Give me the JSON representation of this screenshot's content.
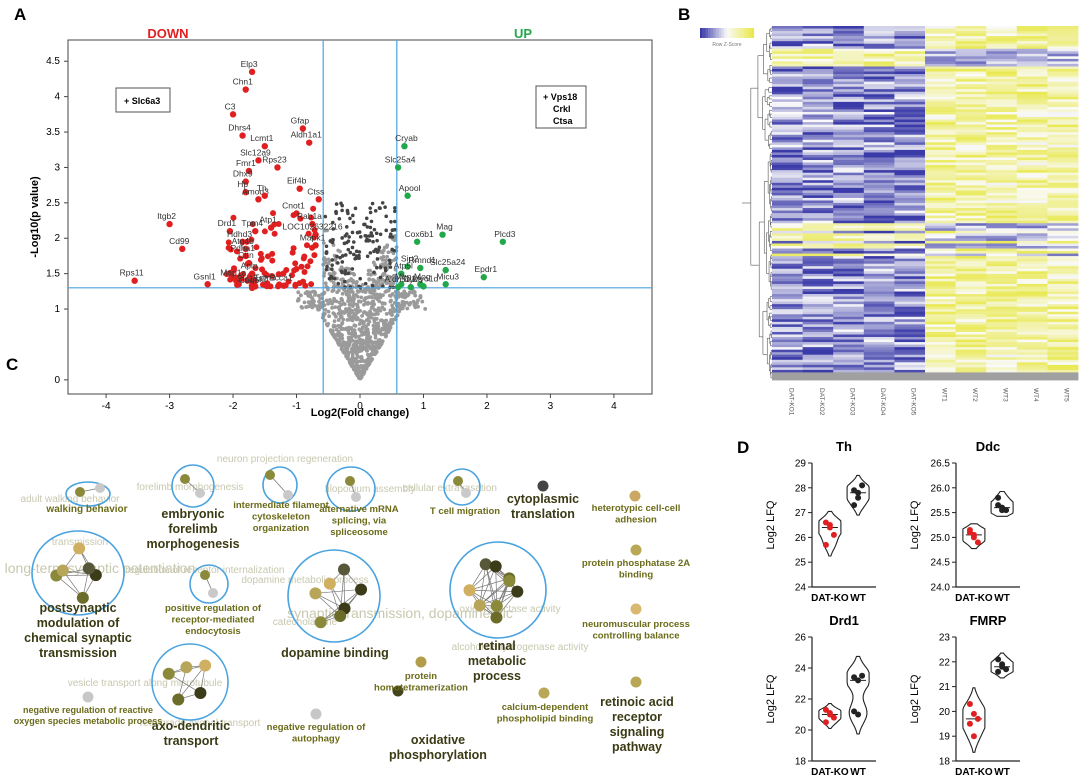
{
  "panel_labels": {
    "A": "A",
    "B": "B",
    "C": "C",
    "D": "D"
  },
  "colors": {
    "down": "#e02020",
    "up": "#22a84a",
    "ns": "#9a9a9a",
    "dark": "#444444",
    "threshold": "#4aa3df",
    "olive": "#6b6b1a",
    "lightText": "#c8c8b0",
    "heatHigh": "#e8e84a",
    "heatLow": "#3a3aa8"
  },
  "chart_data": [
    {
      "type": "scatter",
      "panel": "A",
      "title": "",
      "xlabel": "Log2(Fold change)",
      "ylabel": "-Log10(p value)",
      "xlim": [
        -4.6,
        4.6
      ],
      "ylim": [
        -0.2,
        4.8
      ],
      "xticks": [
        "-4",
        "-3",
        "-2",
        "-1",
        "0",
        "1",
        "2",
        "3",
        "4"
      ],
      "yticks": [
        "0",
        "1",
        "1.5",
        "2",
        "2.5",
        "3",
        "3.5",
        "4",
        "4.5"
      ],
      "region_labels": {
        "down": "DOWN",
        "up": "UP"
      },
      "thresholds": {
        "fc_left": -0.58,
        "fc_right": 0.58,
        "p": 1.3
      },
      "legend_down": {
        "marker": "+",
        "items": [
          "Slc6a3"
        ]
      },
      "legend_up": {
        "marker": "+",
        "items": [
          "Vps18",
          "Crkl",
          "Ctsa"
        ]
      },
      "down_labeled": [
        {
          "label": "Elp3",
          "x": -1.7,
          "y": 4.35
        },
        {
          "label": "Chn1",
          "x": -1.8,
          "y": 4.1
        },
        {
          "label": "C3",
          "x": -2.0,
          "y": 3.75
        },
        {
          "label": "Dhrs4",
          "x": -1.85,
          "y": 3.45
        },
        {
          "label": "Gfap",
          "x": -0.9,
          "y": 3.55
        },
        {
          "label": "Aldh1a1",
          "x": -0.8,
          "y": 3.35
        },
        {
          "label": "Lcmt1",
          "x": -1.5,
          "y": 3.3
        },
        {
          "label": "Slc12a9",
          "x": -1.6,
          "y": 3.1
        },
        {
          "label": "Fmr1",
          "x": -1.75,
          "y": 2.95
        },
        {
          "label": "Rps23",
          "x": -1.3,
          "y": 3.0
        },
        {
          "label": "Dhx9",
          "x": -1.8,
          "y": 2.8
        },
        {
          "label": "Hp",
          "x": -1.8,
          "y": 2.65
        },
        {
          "label": "Eif4b",
          "x": -0.95,
          "y": 2.7
        },
        {
          "label": "Amod3",
          "x": -1.6,
          "y": 2.55
        },
        {
          "label": "Th",
          "x": -1.5,
          "y": 2.6
        },
        {
          "label": "Ctss",
          "x": -0.65,
          "y": 2.55
        },
        {
          "label": "Cnot1",
          "x": -1.0,
          "y": 2.35
        },
        {
          "label": "Rab1a",
          "x": -0.75,
          "y": 2.2
        },
        {
          "label": "Itgb2",
          "x": -3.0,
          "y": 2.2
        },
        {
          "label": "Drd1",
          "x": -2.05,
          "y": 2.1
        },
        {
          "label": "Tpm4",
          "x": -1.65,
          "y": 2.1
        },
        {
          "label": "Atp1",
          "x": -1.4,
          "y": 2.15
        },
        {
          "label": "LOC102632216",
          "x": -0.7,
          "y": 2.05
        },
        {
          "label": "Hdhd3",
          "x": -1.85,
          "y": 1.95
        },
        {
          "label": "Mapk1",
          "x": -0.7,
          "y": 1.9
        },
        {
          "label": "Atg4b",
          "x": -1.8,
          "y": 1.85
        },
        {
          "label": "Cd99",
          "x": -2.8,
          "y": 1.85
        },
        {
          "label": "Pdha1",
          "x": -1.8,
          "y": 1.75
        },
        {
          "label": "Cttn",
          "x": -1.75,
          "y": 1.65
        },
        {
          "label": "Aplp",
          "x": -1.7,
          "y": 1.5
        },
        {
          "label": "Map1a",
          "x": -1.95,
          "y": 1.4
        },
        {
          "label": "Gsnl1",
          "x": -2.4,
          "y": 1.35
        },
        {
          "label": "Rps11",
          "x": -3.55,
          "y": 1.4
        },
        {
          "label": "Coq5",
          "x": -1.7,
          "y": 1.3
        },
        {
          "label": "Slc15a2",
          "x": -1.65,
          "y": 1.32
        },
        {
          "label": "Tpm3",
          "x": -1.45,
          "y": 1.33
        },
        {
          "label": "Scca1",
          "x": -1.2,
          "y": 1.33
        }
      ],
      "up_labeled": [
        {
          "label": "Cryab",
          "x": 0.7,
          "y": 3.3
        },
        {
          "label": "Slc25a4",
          "x": 0.6,
          "y": 3.0
        },
        {
          "label": "Apool",
          "x": 0.75,
          "y": 2.6
        },
        {
          "label": "Mag",
          "x": 1.3,
          "y": 2.05
        },
        {
          "label": "Plcd3",
          "x": 2.25,
          "y": 1.95
        },
        {
          "label": "Cox6b1",
          "x": 0.9,
          "y": 1.95
        },
        {
          "label": "Sirt2",
          "x": 0.75,
          "y": 1.6
        },
        {
          "label": "Rmnd1",
          "x": 0.95,
          "y": 1.58
        },
        {
          "label": "Slc25a24",
          "x": 1.35,
          "y": 1.55
        },
        {
          "label": "Atp5l",
          "x": 0.65,
          "y": 1.5
        },
        {
          "label": "Epdr1",
          "x": 1.95,
          "y": 1.45
        },
        {
          "label": "Mbp",
          "x": 0.65,
          "y": 1.35
        },
        {
          "label": "Mog",
          "x": 0.95,
          "y": 1.35
        },
        {
          "label": "Micu3",
          "x": 1.35,
          "y": 1.35
        },
        {
          "label": "Myo1d",
          "x": 1.0,
          "y": 1.32
        },
        {
          "label": "Aldh5a1",
          "x": 0.6,
          "y": 1.31
        },
        {
          "label": "Cycs",
          "x": 0.8,
          "y": 1.31
        }
      ]
    },
    {
      "type": "heatmap",
      "panel": "B",
      "title": "",
      "columns": [
        "DAT-KO1",
        "DAT-KO2",
        "DAT-KO3",
        "DAT-KO4",
        "DAT-KO5",
        "WT1",
        "WT2",
        "WT3",
        "WT4",
        "WT5"
      ],
      "colorbar_label": "Row Z-Score",
      "colorbar_range": [
        -2,
        2
      ],
      "n_rows": 140,
      "pattern": "DAT-KO columns predominantly low (blue); WT columns predominantly high (yellow)"
    },
    {
      "type": "table",
      "panel": "C",
      "title": "GO enrichment network",
      "terms": [
        {
          "label": "walking behavior",
          "major": false
        },
        {
          "label": "embryonic forelimb morphogenesis",
          "major": true
        },
        {
          "label": "intermediate filament cytoskeleton organization",
          "major": false
        },
        {
          "label": "alternative mRNA splicing, via spliceosome",
          "major": false
        },
        {
          "label": "T cell migration",
          "major": false
        },
        {
          "label": "cytoplasmic translation",
          "major": true
        },
        {
          "label": "heterotypic cell-cell adhesion",
          "major": false
        },
        {
          "label": "protein phosphatase 2A binding",
          "major": false
        },
        {
          "label": "postsynaptic modulation of chemical synaptic transmission",
          "major": true
        },
        {
          "label": "positive regulation of receptor-mediated endocytosis",
          "major": false
        },
        {
          "label": "dopamine binding",
          "major": true
        },
        {
          "label": "retinal metabolic process",
          "major": true
        },
        {
          "label": "neuromuscular process controlling balance",
          "major": false
        },
        {
          "label": "axo-dendritic transport",
          "major": true
        },
        {
          "label": "negative regulation of reactive oxygen species metabolic process",
          "major": false
        },
        {
          "label": "negative regulation of autophagy",
          "major": false
        },
        {
          "label": "protein homotetramerization",
          "major": false
        },
        {
          "label": "oxidative phosphorylation",
          "major": true
        },
        {
          "label": "calcium-dependent phospholipid binding",
          "major": false
        },
        {
          "label": "retinoic acid receptor signaling pathway",
          "major": true
        }
      ],
      "faded_terms": [
        "adult walking behavior",
        "forelimb morphogenesis",
        "neuron projection regeneration",
        "filopodium assembly",
        "cellular extravasation",
        "transmission",
        "long-term synaptic potentiation",
        "regulation of receptor internalization",
        "dopamine metabolic process",
        "catecholamine",
        "synaptic transmission, dopaminergic",
        "oxidoreductase activity",
        "alcohol dehydrogenase activity",
        "vesicle transport along microtubule",
        "retrograde axonal transport"
      ]
    },
    {
      "type": "scatter",
      "panel": "D",
      "subtype": "violin",
      "groups": [
        "DAT-KO",
        "WT"
      ],
      "ylabel": "Log2 LFQ",
      "plots": [
        {
          "title": "Th",
          "ylim": [
            24,
            29
          ],
          "yticks": [
            "24",
            "25",
            "26",
            "27",
            "28",
            "29"
          ],
          "dat_ko": [
            26.6,
            26.4,
            26.1,
            25.7,
            26.5
          ],
          "wt": [
            27.9,
            27.6,
            28.1,
            27.3,
            27.8
          ]
        },
        {
          "title": "Ddc",
          "ylim": [
            24.0,
            26.5
          ],
          "yticks": [
            "24.0",
            "24.5",
            "25.0",
            "25.5",
            "26.0",
            "26.5"
          ],
          "dat_ko": [
            25.15,
            25.05,
            24.9,
            25.1,
            25.0
          ],
          "wt": [
            25.8,
            25.6,
            25.55,
            25.65,
            25.55
          ]
        },
        {
          "title": "Drd1",
          "ylim": [
            18,
            26
          ],
          "yticks": [
            "18",
            "20",
            "22",
            "24",
            "26"
          ],
          "dat_ko": [
            21.3,
            21.0,
            20.8,
            20.5,
            21.1
          ],
          "wt": [
            23.4,
            23.2,
            23.5,
            21.2,
            21.0
          ]
        },
        {
          "title": "FMRP",
          "ylim": [
            18,
            23
          ],
          "yticks": [
            "18",
            "19",
            "20",
            "21",
            "22",
            "23"
          ],
          "dat_ko": [
            20.3,
            19.9,
            19.7,
            19.5,
            19.0
          ],
          "wt": [
            22.1,
            21.8,
            21.7,
            21.6,
            21.9
          ]
        }
      ]
    }
  ]
}
